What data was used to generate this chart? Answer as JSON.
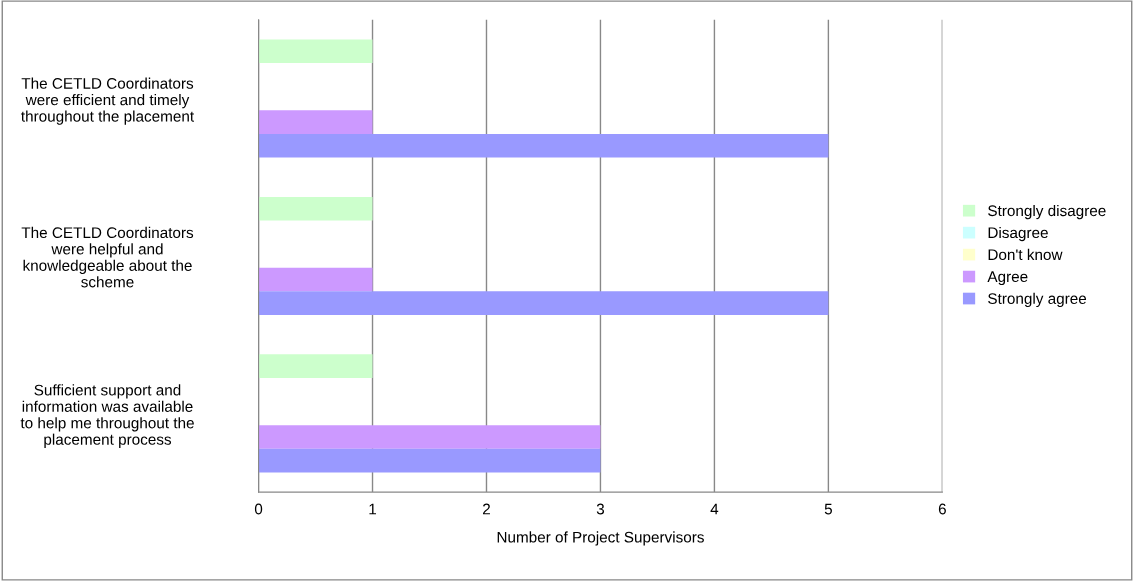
{
  "chart_data": {
    "type": "bar",
    "orientation": "horizontal",
    "xlabel": "Number of Project Supervisors",
    "categories": [
      "The CETLD Coordinators\nwere efficient and timely\nthroughout the placement",
      "The CETLD Coordinators\nwere helpful and\nknowledgeable about the\nscheme",
      "Sufficient support and\ninformation was available\nto help me throughout the\nplacement process"
    ],
    "series": [
      {
        "name": "Strongly disagree",
        "color": "#ccffcc",
        "values": [
          1,
          1,
          1
        ]
      },
      {
        "name": "Disagree",
        "color": "#ccffff",
        "values": [
          0,
          0,
          0
        ]
      },
      {
        "name": "Don't know",
        "color": "#ffffcc",
        "values": [
          0,
          0,
          0
        ]
      },
      {
        "name": "Agree",
        "color": "#cc99ff",
        "values": [
          1,
          1,
          3
        ]
      },
      {
        "name": "Strongly agree",
        "color": "#9999ff",
        "values": [
          5,
          5,
          3
        ]
      }
    ],
    "xlim": [
      0,
      6
    ],
    "xticks": [
      0,
      1,
      2,
      3,
      4,
      5,
      6
    ],
    "grid": "x",
    "legend": "right"
  }
}
